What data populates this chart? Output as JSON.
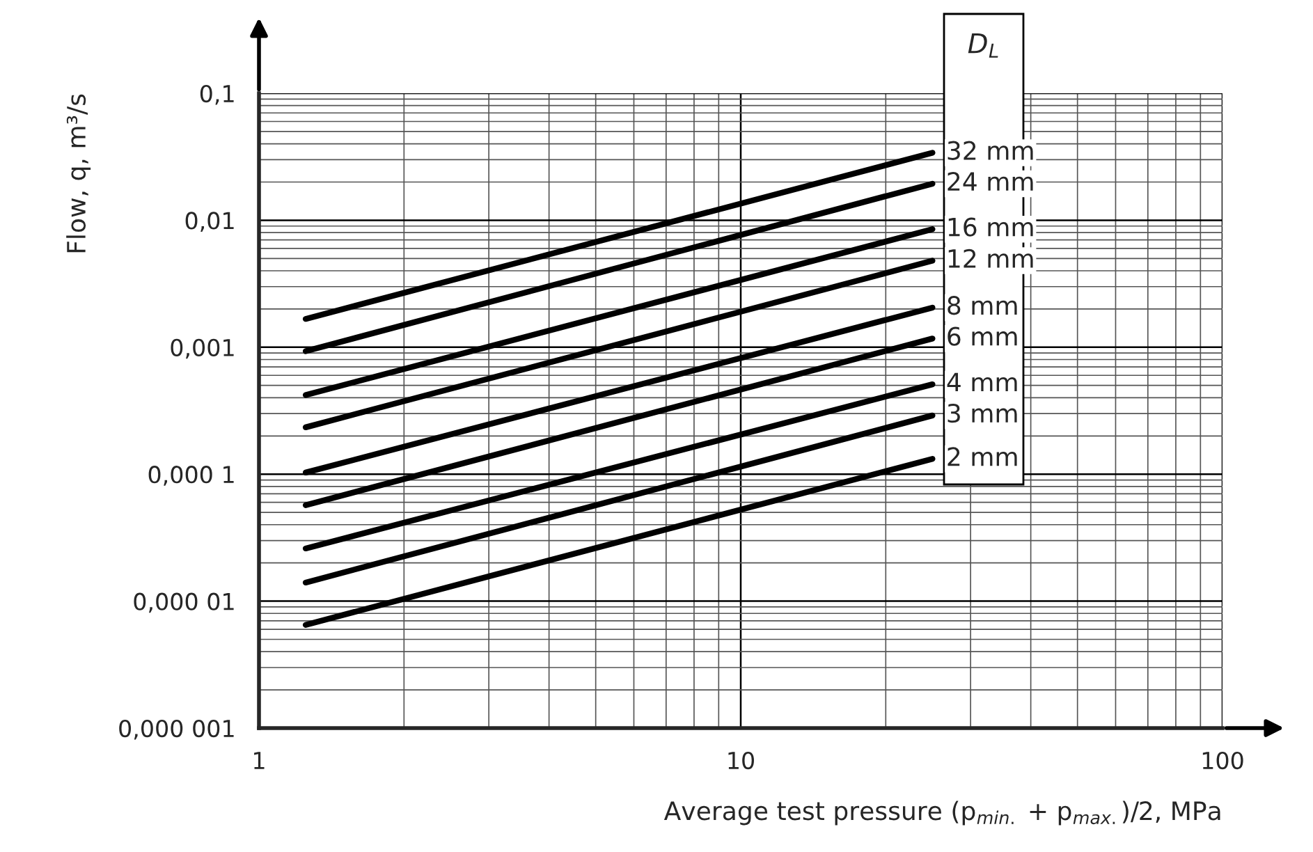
{
  "chart_data": {
    "type": "line",
    "xlabel": "Average test pressure (p$_{min.}$ + p$_{max.}$)/2, MPa",
    "ylabel": "Flow, q, m³/s",
    "legend_title": "D$_{L}$",
    "log": "xy",
    "grid": true,
    "legend": false,
    "marker": "none",
    "line_style": "solid",
    "xlim": [
      1,
      100
    ],
    "xticks": [
      1,
      10,
      100
    ],
    "ylim": [
      1e-06,
      0.1
    ],
    "yticks": [
      {
        "value": 0.1,
        "label": "0,1"
      },
      {
        "value": 0.01,
        "label": "0,01"
      },
      {
        "value": 0.001,
        "label": "0,001"
      },
      {
        "value": 0.0001,
        "label": "0,000 1"
      },
      {
        "value": 1e-05,
        "label": "0,000 01"
      },
      {
        "value": 1e-06,
        "label": "0,000 001"
      }
    ],
    "x": [
      1.25,
      25
    ],
    "series": [
      {
        "name": "32 mm",
        "color": "#000000",
        "values": [
          0.00167,
          0.034
        ]
      },
      {
        "name": "24 mm",
        "color": "#000000",
        "values": [
          0.00093,
          0.0194
        ]
      },
      {
        "name": "16 mm",
        "color": "#000000",
        "values": [
          0.00042,
          0.0085
        ]
      },
      {
        "name": "12 mm",
        "color": "#000000",
        "values": [
          0.000234,
          0.0048
        ]
      },
      {
        "name": "8 mm",
        "color": "#000000",
        "values": [
          0.000103,
          0.00205
        ]
      },
      {
        "name": "6 mm",
        "color": "#000000",
        "values": [
          5.7e-05,
          0.00117
        ]
      },
      {
        "name": "4 mm",
        "color": "#000000",
        "values": [
          2.6e-05,
          0.00051
        ]
      },
      {
        "name": "3 mm",
        "color": "#000000",
        "values": [
          1.4e-05,
          0.00029
        ]
      },
      {
        "name": "2 mm",
        "color": "#000000",
        "values": [
          6.5e-06,
          0.000132
        ]
      }
    ]
  }
}
